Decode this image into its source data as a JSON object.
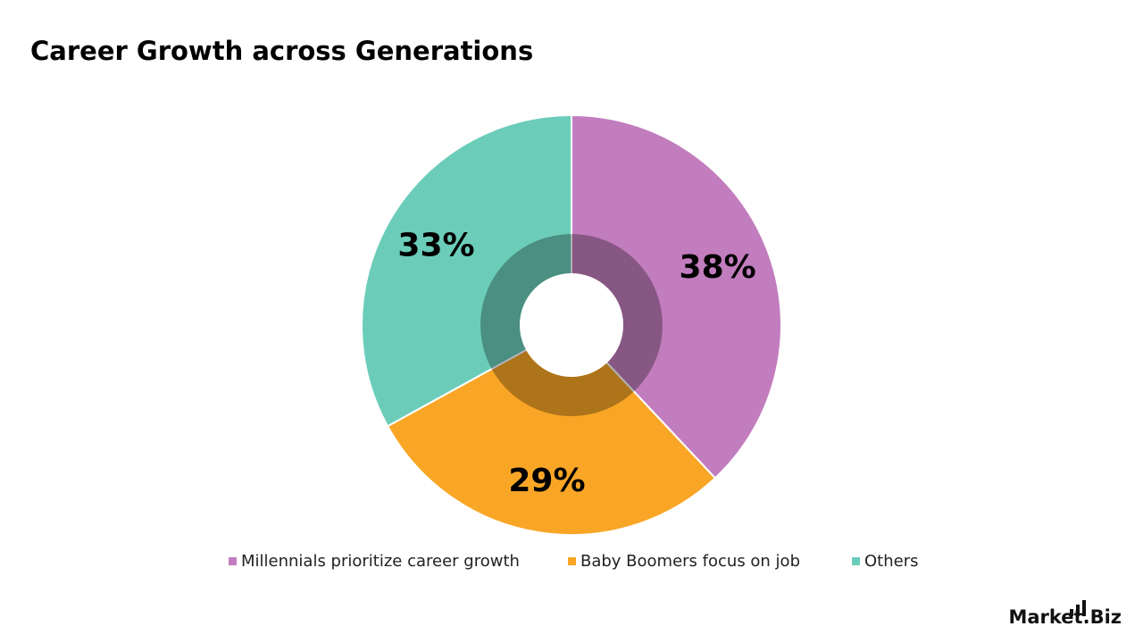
{
  "chart_data": {
    "type": "donut",
    "title": "Career Growth across Generations",
    "categories": [
      "Millennials prioritize career growth",
      "Baby Boomers focus on job",
      "Others"
    ],
    "values": [
      38,
      29,
      33
    ],
    "value_labels": [
      "38%",
      "29%",
      "33%"
    ],
    "colors": [
      "#c27dbe",
      "#f9a626",
      "#6bcdb9"
    ],
    "legend": "bottom"
  },
  "logo": "Market.Biz"
}
